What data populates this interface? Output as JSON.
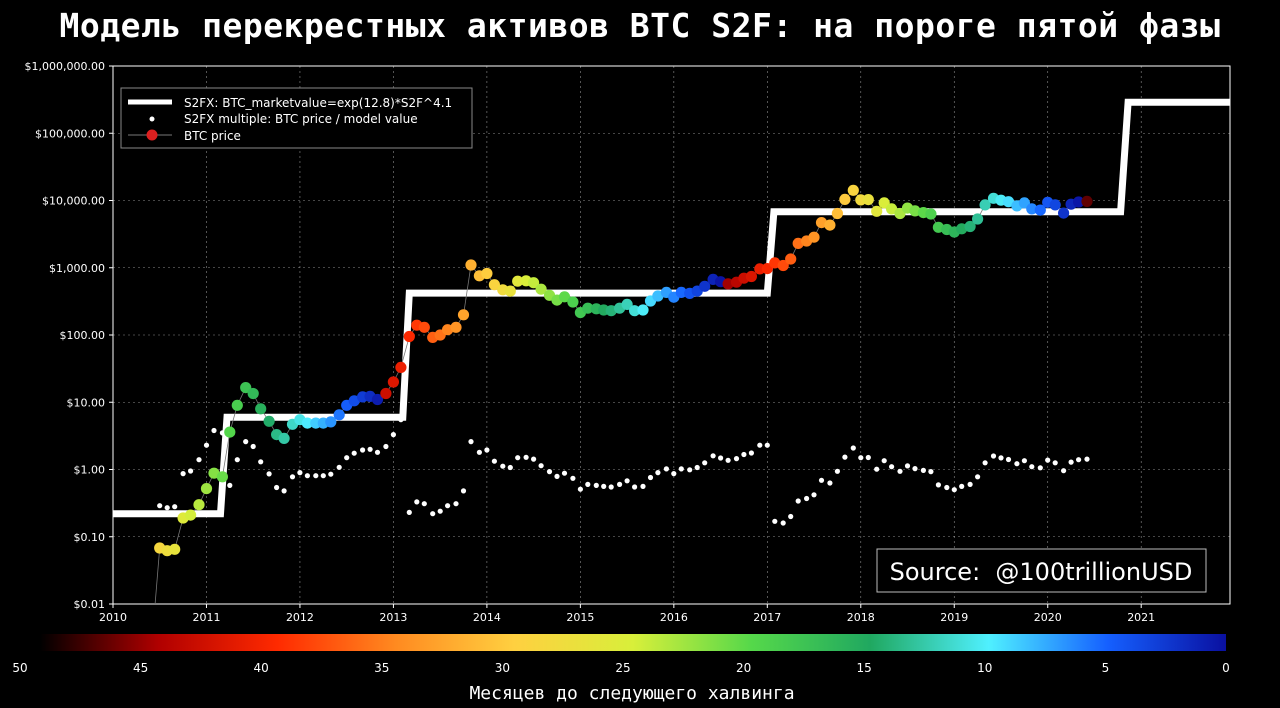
{
  "title": "Модель перекрестных активов BTC S2F: на пороге пятой фазы",
  "source_label": "Source:  @100trillionUSD",
  "colorbar": {
    "caption": "Месяцев до следующего халвинга",
    "ticks": [
      "50",
      "45",
      "40",
      "35",
      "30",
      "25",
      "20",
      "15",
      "10",
      "5",
      "0"
    ],
    "stops": [
      "#000000",
      "#b00000",
      "#ff2a00",
      "#ff8a20",
      "#ffd040",
      "#d8ef3a",
      "#55d84a",
      "#20a860",
      "#4ff0ff",
      "#1560ff",
      "#0a10a0"
    ]
  },
  "chart_data": {
    "type": "scatter",
    "title": "",
    "xlabel": "",
    "ylabel": "",
    "y_scale": "log",
    "x_range": [
      2010.0,
      2021.95
    ],
    "ylim": [
      0.01,
      1000000
    ],
    "grid": true,
    "legend_position": "top-left",
    "x_ticks": [
      "2010",
      "2011",
      "2012",
      "2013",
      "2014",
      "2015",
      "2016",
      "2017",
      "2018",
      "2019",
      "2020",
      "2021"
    ],
    "y_ticks": [
      "$0.01",
      "$0.10",
      "$1.00",
      "$10.00",
      "$100.00",
      "$1,000.00",
      "$10,000.00",
      "$100,000.00",
      "$1,000,000.00"
    ],
    "legend": [
      {
        "label": "S2FX: BTC_marketvalue=exp(12.8)*S2F^4.1",
        "style": "thick-white-line"
      },
      {
        "label": "S2FX multiple: BTC price / model value",
        "style": "white-dot"
      },
      {
        "label": "BTC price",
        "style": "red-dot-with-line"
      }
    ],
    "model_line": [
      [
        2010.0,
        0.22
      ],
      [
        2011.15,
        0.22
      ],
      [
        2011.22,
        6.0
      ],
      [
        2013.1,
        6.0
      ],
      [
        2013.17,
        420
      ],
      [
        2017.0,
        420
      ],
      [
        2017.07,
        6800
      ],
      [
        2020.78,
        6800
      ],
      [
        2020.86,
        290000
      ],
      [
        2021.95,
        290000
      ]
    ],
    "btc_price": [
      [
        2010.45,
        0.01
      ],
      [
        2010.5,
        0.068
      ],
      [
        2010.58,
        0.062
      ],
      [
        2010.66,
        0.065
      ],
      [
        2010.75,
        0.19
      ],
      [
        2010.83,
        0.21
      ],
      [
        2010.92,
        0.3
      ],
      [
        2011.0,
        0.52
      ],
      [
        2011.08,
        0.88
      ],
      [
        2011.17,
        0.78
      ],
      [
        2011.25,
        3.6
      ],
      [
        2011.33,
        9.0
      ],
      [
        2011.42,
        16.5
      ],
      [
        2011.5,
        13.5
      ],
      [
        2011.58,
        8.0
      ],
      [
        2011.67,
        5.2
      ],
      [
        2011.75,
        3.3
      ],
      [
        2011.83,
        2.9
      ],
      [
        2011.92,
        4.7
      ],
      [
        2012.0,
        5.5
      ],
      [
        2012.08,
        4.9
      ],
      [
        2012.17,
        4.9
      ],
      [
        2012.25,
        4.9
      ],
      [
        2012.33,
        5.1
      ],
      [
        2012.42,
        6.5
      ],
      [
        2012.5,
        9.0
      ],
      [
        2012.58,
        10.5
      ],
      [
        2012.67,
        12.0
      ],
      [
        2012.75,
        12.2
      ],
      [
        2012.83,
        11.0
      ],
      [
        2012.92,
        13.5
      ],
      [
        2013.0,
        20.0
      ],
      [
        2013.08,
        33.0
      ],
      [
        2013.17,
        95.0
      ],
      [
        2013.25,
        140.0
      ],
      [
        2013.33,
        130.0
      ],
      [
        2013.42,
        92.0
      ],
      [
        2013.5,
        100.0
      ],
      [
        2013.58,
        120.0
      ],
      [
        2013.67,
        130.0
      ],
      [
        2013.75,
        200.0
      ],
      [
        2013.83,
        1100.0
      ],
      [
        2013.92,
        760.0
      ],
      [
        2014.0,
        820.0
      ],
      [
        2014.08,
        560.0
      ],
      [
        2014.17,
        470.0
      ],
      [
        2014.25,
        450.0
      ],
      [
        2014.33,
        630.0
      ],
      [
        2014.42,
        640.0
      ],
      [
        2014.5,
        600.0
      ],
      [
        2014.58,
        480.0
      ],
      [
        2014.67,
        390.0
      ],
      [
        2014.75,
        330.0
      ],
      [
        2014.83,
        370.0
      ],
      [
        2014.92,
        310.0
      ],
      [
        2015.0,
        215.0
      ],
      [
        2015.08,
        250.0
      ],
      [
        2015.17,
        245.0
      ],
      [
        2015.25,
        235.0
      ],
      [
        2015.33,
        230.0
      ],
      [
        2015.42,
        250.0
      ],
      [
        2015.5,
        285.0
      ],
      [
        2015.58,
        230.0
      ],
      [
        2015.67,
        235.0
      ],
      [
        2015.75,
        320.0
      ],
      [
        2015.83,
        380.0
      ],
      [
        2015.92,
        430.0
      ],
      [
        2016.0,
        365.0
      ],
      [
        2016.08,
        430.0
      ],
      [
        2016.17,
        415.0
      ],
      [
        2016.25,
        450.0
      ],
      [
        2016.33,
        530.0
      ],
      [
        2016.42,
        670.0
      ],
      [
        2016.5,
        620.0
      ],
      [
        2016.58,
        575.0
      ],
      [
        2016.67,
        610.0
      ],
      [
        2016.75,
        700.0
      ],
      [
        2016.83,
        740.0
      ],
      [
        2016.92,
        960.0
      ],
      [
        2017.0,
        970.0
      ],
      [
        2017.08,
        1180.0
      ],
      [
        2017.17,
        1080.0
      ],
      [
        2017.25,
        1350.0
      ],
      [
        2017.33,
        2300.0
      ],
      [
        2017.42,
        2500.0
      ],
      [
        2017.5,
        2850.0
      ],
      [
        2017.58,
        4700.0
      ],
      [
        2017.67,
        4300.0
      ],
      [
        2017.75,
        6400.0
      ],
      [
        2017.83,
        10400.0
      ],
      [
        2017.92,
        14200.0
      ],
      [
        2018.0,
        10200.0
      ],
      [
        2018.08,
        10300.0
      ],
      [
        2018.17,
        6900.0
      ],
      [
        2018.25,
        9200.0
      ],
      [
        2018.33,
        7500.0
      ],
      [
        2018.42,
        6400.0
      ],
      [
        2018.5,
        7700.0
      ],
      [
        2018.58,
        7000.0
      ],
      [
        2018.67,
        6600.0
      ],
      [
        2018.75,
        6300.0
      ],
      [
        2018.83,
        4000.0
      ],
      [
        2018.92,
        3700.0
      ],
      [
        2019.0,
        3400.0
      ],
      [
        2019.08,
        3800.0
      ],
      [
        2019.17,
        4100.0
      ],
      [
        2019.25,
        5300.0
      ],
      [
        2019.33,
        8600.0
      ],
      [
        2019.42,
        10800.0
      ],
      [
        2019.5,
        10100.0
      ],
      [
        2019.58,
        9600.0
      ],
      [
        2019.67,
        8300.0
      ],
      [
        2019.75,
        9200.0
      ],
      [
        2019.83,
        7500.0
      ],
      [
        2019.92,
        7200.0
      ],
      [
        2020.0,
        9400.0
      ],
      [
        2020.08,
        8600.0
      ],
      [
        2020.17,
        6500.0
      ],
      [
        2020.25,
        8800.0
      ],
      [
        2020.33,
        9500.0
      ],
      [
        2020.42,
        9700.0
      ]
    ],
    "s2fx_multiple": [
      [
        2010.5,
        0.29
      ],
      [
        2010.58,
        0.27
      ],
      [
        2010.66,
        0.28
      ],
      [
        2010.75,
        0.87
      ],
      [
        2010.83,
        0.95
      ],
      [
        2010.92,
        1.4
      ],
      [
        2011.0,
        2.3
      ],
      [
        2011.08,
        3.8
      ],
      [
        2011.17,
        3.5
      ],
      [
        2011.25,
        0.58
      ],
      [
        2011.33,
        1.4
      ],
      [
        2011.42,
        2.6
      ],
      [
        2011.5,
        2.2
      ],
      [
        2011.58,
        1.3
      ],
      [
        2011.67,
        0.86
      ],
      [
        2011.75,
        0.54
      ],
      [
        2011.83,
        0.48
      ],
      [
        2011.92,
        0.78
      ],
      [
        2012.0,
        0.9
      ],
      [
        2012.08,
        0.81
      ],
      [
        2012.17,
        0.81
      ],
      [
        2012.25,
        0.81
      ],
      [
        2012.33,
        0.85
      ],
      [
        2012.42,
        1.08
      ],
      [
        2012.5,
        1.5
      ],
      [
        2012.58,
        1.75
      ],
      [
        2012.67,
        1.95
      ],
      [
        2012.75,
        2.0
      ],
      [
        2012.83,
        1.8
      ],
      [
        2012.92,
        2.2
      ],
      [
        2013.0,
        3.3
      ],
      [
        2013.08,
        5.5
      ],
      [
        2013.17,
        0.23
      ],
      [
        2013.25,
        0.33
      ],
      [
        2013.33,
        0.31
      ],
      [
        2013.42,
        0.22
      ],
      [
        2013.5,
        0.24
      ],
      [
        2013.58,
        0.29
      ],
      [
        2013.67,
        0.31
      ],
      [
        2013.75,
        0.48
      ],
      [
        2013.83,
        2.6
      ],
      [
        2013.92,
        1.8
      ],
      [
        2014.0,
        1.95
      ],
      [
        2014.08,
        1.33
      ],
      [
        2014.17,
        1.12
      ],
      [
        2014.25,
        1.07
      ],
      [
        2014.33,
        1.5
      ],
      [
        2014.42,
        1.52
      ],
      [
        2014.5,
        1.43
      ],
      [
        2014.58,
        1.14
      ],
      [
        2014.67,
        0.93
      ],
      [
        2014.75,
        0.79
      ],
      [
        2014.83,
        0.88
      ],
      [
        2014.92,
        0.74
      ],
      [
        2015.0,
        0.51
      ],
      [
        2015.08,
        0.6
      ],
      [
        2015.17,
        0.58
      ],
      [
        2015.25,
        0.56
      ],
      [
        2015.33,
        0.55
      ],
      [
        2015.42,
        0.6
      ],
      [
        2015.5,
        0.68
      ],
      [
        2015.58,
        0.55
      ],
      [
        2015.67,
        0.56
      ],
      [
        2015.75,
        0.76
      ],
      [
        2015.83,
        0.9
      ],
      [
        2015.92,
        1.02
      ],
      [
        2016.0,
        0.87
      ],
      [
        2016.08,
        1.02
      ],
      [
        2016.17,
        0.99
      ],
      [
        2016.25,
        1.07
      ],
      [
        2016.33,
        1.26
      ],
      [
        2016.42,
        1.6
      ],
      [
        2016.5,
        1.48
      ],
      [
        2016.58,
        1.37
      ],
      [
        2016.67,
        1.45
      ],
      [
        2016.75,
        1.67
      ],
      [
        2016.83,
        1.76
      ],
      [
        2016.92,
        2.3
      ],
      [
        2017.0,
        2.3
      ],
      [
        2017.08,
        0.17
      ],
      [
        2017.17,
        0.16
      ],
      [
        2017.25,
        0.2
      ],
      [
        2017.33,
        0.34
      ],
      [
        2017.42,
        0.37
      ],
      [
        2017.5,
        0.42
      ],
      [
        2017.58,
        0.69
      ],
      [
        2017.67,
        0.63
      ],
      [
        2017.75,
        0.94
      ],
      [
        2017.83,
        1.53
      ],
      [
        2017.92,
        2.09
      ],
      [
        2018.0,
        1.5
      ],
      [
        2018.08,
        1.51
      ],
      [
        2018.17,
        1.01
      ],
      [
        2018.25,
        1.35
      ],
      [
        2018.33,
        1.1
      ],
      [
        2018.42,
        0.94
      ],
      [
        2018.5,
        1.13
      ],
      [
        2018.58,
        1.03
      ],
      [
        2018.67,
        0.97
      ],
      [
        2018.75,
        0.93
      ],
      [
        2018.83,
        0.59
      ],
      [
        2018.92,
        0.54
      ],
      [
        2019.0,
        0.5
      ],
      [
        2019.08,
        0.56
      ],
      [
        2019.17,
        0.6
      ],
      [
        2019.25,
        0.78
      ],
      [
        2019.33,
        1.26
      ],
      [
        2019.42,
        1.59
      ],
      [
        2019.5,
        1.49
      ],
      [
        2019.58,
        1.41
      ],
      [
        2019.67,
        1.22
      ],
      [
        2019.75,
        1.35
      ],
      [
        2019.83,
        1.1
      ],
      [
        2019.92,
        1.06
      ],
      [
        2020.0,
        1.38
      ],
      [
        2020.08,
        1.26
      ],
      [
        2020.17,
        0.96
      ],
      [
        2020.25,
        1.29
      ],
      [
        2020.33,
        1.4
      ],
      [
        2020.42,
        1.43
      ]
    ],
    "halving_dates": [
      2012.9,
      2016.52,
      2020.36
    ]
  }
}
